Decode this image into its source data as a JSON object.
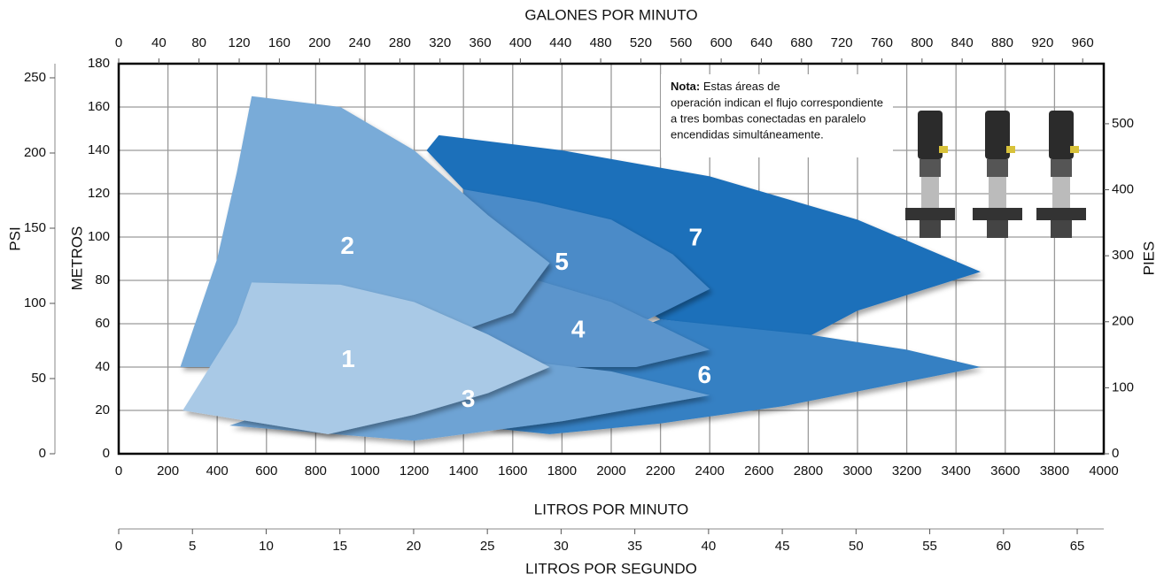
{
  "chart_data": {
    "type": "area",
    "xlabel": "LITROS POR MINUTO",
    "ylabel": "METROS",
    "xlim": [
      0,
      4000
    ],
    "xticks": [
      0,
      200,
      400,
      600,
      800,
      1000,
      1200,
      1400,
      1600,
      1800,
      2000,
      2200,
      2400,
      2600,
      2800,
      3000,
      3200,
      3400,
      3600,
      3800,
      4000
    ],
    "ylim": [
      0,
      180
    ],
    "yticks": [
      0,
      20,
      40,
      60,
      80,
      100,
      120,
      140,
      160,
      180
    ],
    "grid": true,
    "x2label": "GALONES POR MINUTO",
    "x2lim": [
      0,
      981
    ],
    "x2ticks": [
      0,
      40,
      80,
      120,
      160,
      200,
      240,
      280,
      320,
      360,
      400,
      440,
      480,
      520,
      560,
      600,
      640,
      680,
      720,
      760,
      800,
      840,
      880,
      920,
      960
    ],
    "x3label": "LITROS POR SEGUNDO",
    "x3lim": [
      0,
      66.8
    ],
    "x3ticks": [
      0,
      5,
      10,
      15,
      20,
      25,
      30,
      35,
      40,
      45,
      50,
      55,
      60,
      65
    ],
    "y2label": "PIES",
    "y2lim": [
      0,
      591
    ],
    "y2ticks": [
      0,
      100,
      200,
      300,
      400,
      500
    ],
    "y3label": "PSI",
    "y3lim": [
      0,
      259.4
    ],
    "y3ticks": [
      0,
      50,
      100,
      150,
      200,
      250
    ],
    "series": [
      {
        "name": "7",
        "color": "#1f6fba",
        "x": [
          1250,
          1300,
          1800,
          2400,
          3000,
          3500,
          3000,
          2800,
          2200,
          1400
        ],
        "y": [
          140,
          147,
          140,
          128,
          108,
          84,
          66,
          54,
          62,
          122
        ]
      },
      {
        "name": "6",
        "color": "#3480c3",
        "x": [
          1750,
          2200,
          2700,
          3500,
          3200,
          2800,
          2200,
          1800,
          1500
        ],
        "y": [
          9,
          14,
          22,
          40,
          48,
          55,
          62,
          45,
          12
        ]
      },
      {
        "name": "5",
        "color": "#4c8bc8",
        "x": [
          1400,
          1700,
          2000,
          2250,
          2400,
          2150,
          1800,
          1400
        ],
        "y": [
          122,
          116,
          108,
          92,
          76,
          62,
          70,
          57
        ]
      },
      {
        "name": "4",
        "color": "#5c95cc",
        "x": [
          1400,
          1700,
          2000,
          2400,
          2100,
          1750
        ],
        "y": [
          57,
          80,
          70,
          48,
          40,
          40
        ]
      },
      {
        "name": "3",
        "color": "#6ea3d4",
        "x": [
          450,
          1200,
          1800,
          2400,
          2000,
          1700,
          1400,
          900
        ],
        "y": [
          13,
          6,
          15,
          27,
          38,
          42,
          45,
          30
        ]
      },
      {
        "name": "2",
        "color": "#79abd8",
        "x": [
          250,
          400,
          480,
          540,
          900,
          1200,
          1500,
          1750,
          1600,
          1400,
          1000,
          400
        ],
        "y": [
          40,
          90,
          130,
          165,
          160,
          140,
          110,
          88,
          65,
          57,
          45,
          40
        ]
      },
      {
        "name": "1",
        "color": "#a9c9e6",
        "x": [
          260,
          480,
          540,
          900,
          1200,
          1500,
          1750,
          1500,
          1200,
          850
        ],
        "y": [
          20,
          60,
          79,
          78,
          70,
          55,
          40,
          28,
          18,
          9
        ]
      }
    ],
    "annotation": {
      "label": "Nota:",
      "lines": [
        "Estas áreas de",
        "operación indican el flujo correspondiente",
        "a tres bombas conectadas en paralelo",
        "encendidas simultáneamente."
      ]
    }
  }
}
